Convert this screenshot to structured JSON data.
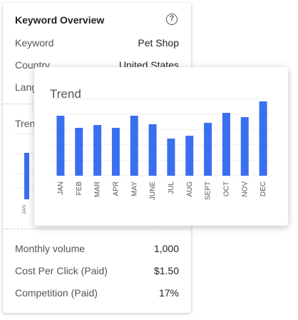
{
  "card": {
    "title": "Keyword Overview",
    "help_icon": "?",
    "rows": [
      {
        "label": "Keyword",
        "value": "Pet Shop"
      },
      {
        "label": "Country",
        "value": "United States"
      },
      {
        "label": "Lang",
        "value": ""
      }
    ],
    "trend_label": "Tren",
    "background_tick": "JAN",
    "stats": [
      {
        "label": "Monthly volume",
        "value": "1,000"
      },
      {
        "label": "Cost Per Click (Paid)",
        "value": "$1.50"
      },
      {
        "label": "Competition (Paid)",
        "value": "17%"
      }
    ]
  },
  "popup": {
    "title": "Trend"
  },
  "colors": {
    "bar": "#3a6ff0",
    "grid": "#eeeeee"
  },
  "chart_data": {
    "type": "bar",
    "title": "Trend",
    "categories": [
      "JAN",
      "FEB",
      "MAR",
      "APR",
      "MAY",
      "JUNE",
      "JUL",
      "AUG",
      "SEPT",
      "OCT",
      "NOV",
      "DEC"
    ],
    "values": [
      84,
      67,
      71,
      67,
      84,
      72,
      52,
      56,
      74,
      88,
      82,
      104
    ],
    "ylim": [
      0,
      108
    ],
    "grid": true
  }
}
